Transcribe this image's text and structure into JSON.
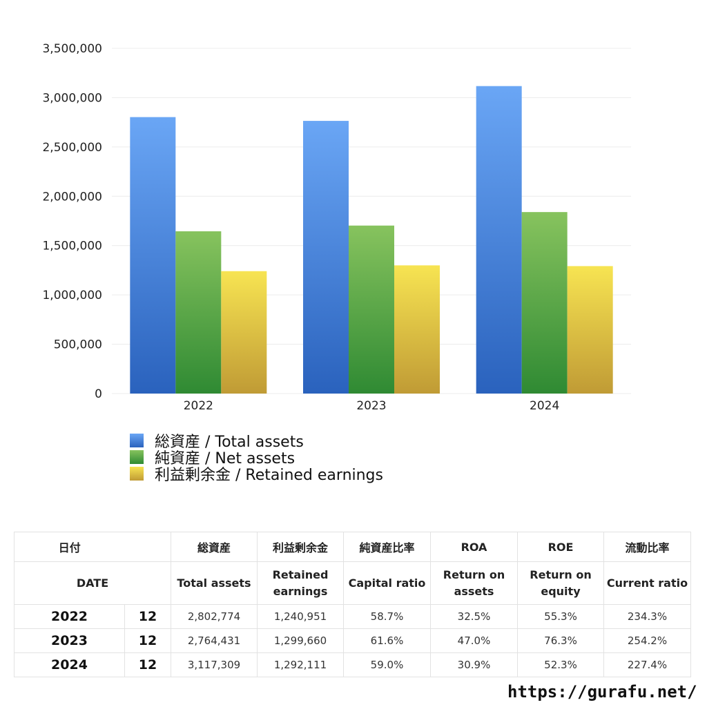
{
  "chart_data": {
    "type": "bar",
    "categories": [
      "2022",
      "2023",
      "2024"
    ],
    "series": [
      {
        "name": "総資産 / Total assets",
        "values": [
          2802774,
          2764431,
          3117309
        ],
        "color_top": "#6aa6f5",
        "color_bottom": "#2a62bd"
      },
      {
        "name": "純資産 / Net assets",
        "values": [
          1645000,
          1703000,
          1840000
        ],
        "color_top": "#87c35e",
        "color_bottom": "#2f8a33"
      },
      {
        "name": "利益剰余金 / Retained earnings",
        "values": [
          1240951,
          1299660,
          1292111
        ],
        "color_top": "#f7e452",
        "color_bottom": "#c09b35"
      }
    ],
    "ylim": [
      0,
      3500000
    ],
    "yticks": [
      0,
      500000,
      1000000,
      1500000,
      2000000,
      2500000,
      3000000,
      3500000
    ],
    "ytick_labels": [
      "0",
      "500,000",
      "1,000,000",
      "1,500,000",
      "2,000,000",
      "2,500,000",
      "3,000,000",
      "3,500,000"
    ],
    "grid": true,
    "legend_placement": "bottom-left"
  },
  "table": {
    "header_jp": [
      "日付",
      "",
      "総資産",
      "利益剰余金",
      "純資産比率",
      "ROA",
      "ROE",
      "流動比率"
    ],
    "header_en": [
      "DATE",
      "Total assets",
      "Retained earnings",
      "Capital ratio",
      "Return on assets",
      "Return on equity",
      "Current ratio"
    ],
    "rows": [
      [
        "2022",
        "12",
        "2,802,774",
        "1,240,951",
        "58.7%",
        "32.5%",
        "55.3%",
        "234.3%"
      ],
      [
        "2023",
        "12",
        "2,764,431",
        "1,299,660",
        "61.6%",
        "47.0%",
        "76.3%",
        "254.2%"
      ],
      [
        "2024",
        "12",
        "3,117,309",
        "1,292,111",
        "59.0%",
        "30.9%",
        "52.3%",
        "227.4%"
      ]
    ]
  },
  "footer": {
    "url": "https://gurafu.net/"
  }
}
